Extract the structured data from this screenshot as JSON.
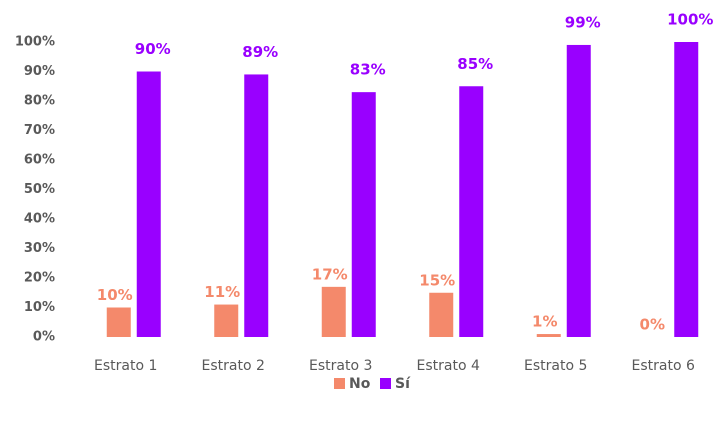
{
  "chart_data": {
    "type": "bar",
    "categories": [
      "Estrato 1",
      "Estrato 2",
      "Estrato 3",
      "Estrato 4",
      "Estrato 5",
      "Estrato 6"
    ],
    "series": [
      {
        "name": "No",
        "color": "#f4896b",
        "values": [
          10,
          11,
          17,
          15,
          1,
          0
        ],
        "value_labels": [
          "10%",
          "11%",
          "17%",
          "15%",
          "1%",
          "0%"
        ]
      },
      {
        "name": "Sí",
        "color": "#9900ff",
        "values": [
          90,
          89,
          83,
          85,
          99,
          100
        ],
        "value_labels": [
          "90%",
          "89%",
          "83%",
          "85%",
          "99%",
          "100%"
        ]
      }
    ],
    "ylim": [
      0,
      100
    ],
    "yticks": [
      {
        "value": 0,
        "label": "0%"
      },
      {
        "value": 10,
        "label": "10%"
      },
      {
        "value": 20,
        "label": "20%"
      },
      {
        "value": 30,
        "label": "30%"
      },
      {
        "value": 40,
        "label": "40%"
      },
      {
        "value": 50,
        "label": "50%"
      },
      {
        "value": 60,
        "label": "60%"
      },
      {
        "value": 70,
        "label": "70%"
      },
      {
        "value": 80,
        "label": "80%"
      },
      {
        "value": 90,
        "label": "90%"
      },
      {
        "value": 100,
        "label": "100%"
      }
    ],
    "legend": "bottom",
    "grid": false
  }
}
